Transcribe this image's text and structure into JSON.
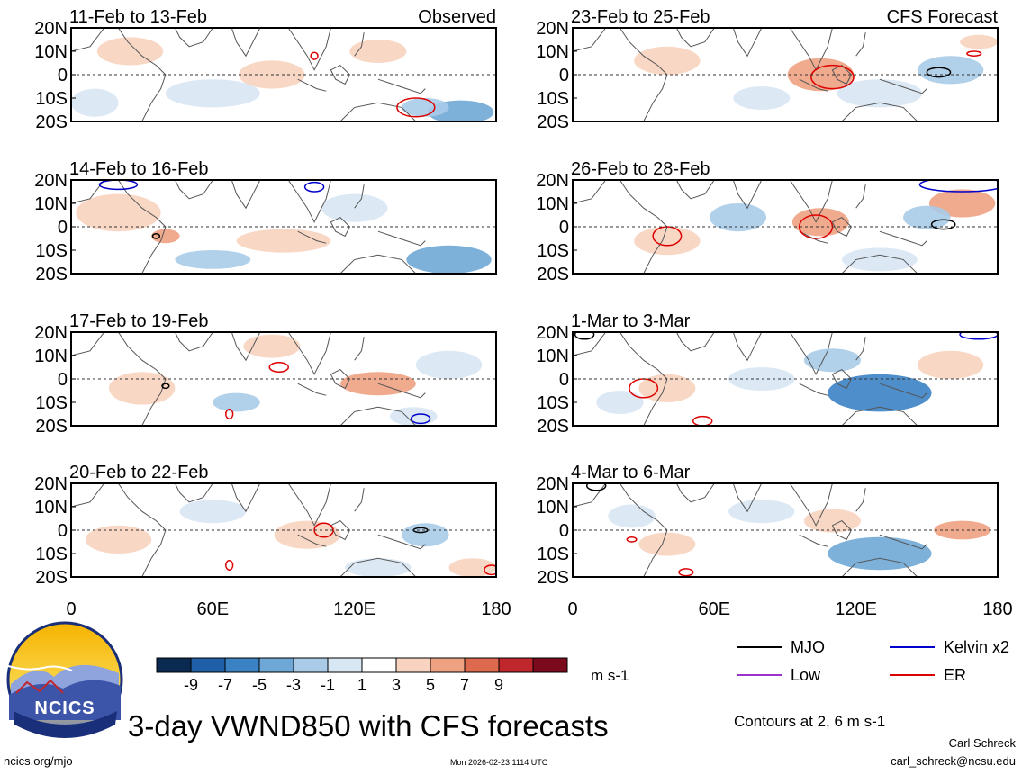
{
  "chart_data": {
    "type": "heatmap",
    "title": "3-day VWND850 with CFS forecasts",
    "variable": "VWND850",
    "units": "m s-1",
    "xlabel": "",
    "ylabel": "",
    "x_ticks": [
      "0",
      "60E",
      "120E",
      "180"
    ],
    "x_range": [
      0,
      180
    ],
    "y_ticks": [
      "20N",
      "10N",
      "0",
      "10S",
      "20S"
    ],
    "y_range": [
      -20,
      20
    ],
    "colorbar": {
      "levels": [
        -9,
        -7,
        -5,
        -3,
        -1,
        1,
        3,
        5,
        7,
        9
      ],
      "tick_labels": [
        "-9",
        "-7",
        "-5",
        "-3",
        "-1",
        "1",
        "3",
        "5",
        "7",
        "9"
      ],
      "colors": [
        "#0b2a52",
        "#1f5fa8",
        "#3b82c4",
        "#6fa8d6",
        "#a9cbe8",
        "#d8e7f4",
        "#ffffff",
        "#f8d3bf",
        "#eea282",
        "#dd6a4e",
        "#c0272d",
        "#7a0a1c"
      ]
    },
    "panels": [
      {
        "label": "11-Feb to 13-Feb",
        "tag": "Observed"
      },
      {
        "label": "14-Feb to 16-Feb",
        "tag": ""
      },
      {
        "label": "17-Feb to 19-Feb",
        "tag": ""
      },
      {
        "label": "20-Feb to 22-Feb",
        "tag": ""
      },
      {
        "label": "23-Feb to 25-Feb",
        "tag": "CFS Forecast"
      },
      {
        "label": "26-Feb to 28-Feb",
        "tag": ""
      },
      {
        "label": "1-Mar to 3-Mar",
        "tag": ""
      },
      {
        "label": "4-Mar to 6-Mar",
        "tag": ""
      }
    ],
    "legend": [
      {
        "name": "MJO",
        "color": "#000000"
      },
      {
        "name": "Kelvin x2",
        "color": "#0000cc"
      },
      {
        "name": "Low",
        "color": "#9933cc"
      },
      {
        "name": "ER",
        "color": "#dd0000"
      }
    ],
    "contour_note": "Contours at 2, 6 m s-1"
  },
  "logo": {
    "text": "NCICS"
  },
  "footer": {
    "url": "ncics.org/mjo",
    "timestamp": "Mon 2026-02-23 1114 UTC",
    "author": "Carl Schreck",
    "email": "carl_schreck@ncsu.edu"
  }
}
